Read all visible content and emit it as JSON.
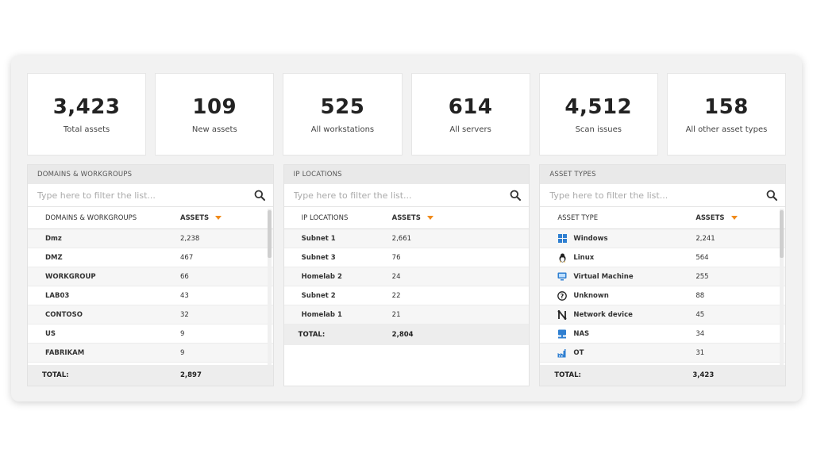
{
  "stats": [
    {
      "value": "3,423",
      "label": "Total assets"
    },
    {
      "value": "109",
      "label": "New assets"
    },
    {
      "value": "525",
      "label": "All workstations"
    },
    {
      "value": "614",
      "label": "All servers"
    },
    {
      "value": "4,512",
      "label": "Scan issues"
    },
    {
      "value": "158",
      "label": "All other asset types"
    }
  ],
  "domains": {
    "title": "DOMAINS & WORKGROUPS",
    "placeholder": "Type here to filter the list...",
    "col1": "DOMAINS & WORKGROUPS",
    "col2": "ASSETS",
    "rows": [
      {
        "name": "Dmz",
        "count": "2,238"
      },
      {
        "name": "DMZ",
        "count": "467"
      },
      {
        "name": "WORKGROUP",
        "count": "66"
      },
      {
        "name": "LAB03",
        "count": "43"
      },
      {
        "name": "CONTOSO",
        "count": "32"
      },
      {
        "name": "US",
        "count": "9"
      },
      {
        "name": "FABRIKAM",
        "count": "9"
      }
    ],
    "total_label": "TOTAL:",
    "total": "2,897"
  },
  "ip": {
    "title": "IP LOCATIONS",
    "placeholder": "Type here to filter the list...",
    "col1": "IP LOCATIONS",
    "col2": "ASSETS",
    "rows": [
      {
        "name": "Subnet 1",
        "count": "2,661"
      },
      {
        "name": "Subnet 3",
        "count": "76"
      },
      {
        "name": "Homelab 2",
        "count": "24"
      },
      {
        "name": "Subnet 2",
        "count": "22"
      },
      {
        "name": "Homelab 1",
        "count": "21"
      }
    ],
    "total_label": "TOTAL:",
    "total": "2,804"
  },
  "types": {
    "title": "ASSET TYPES",
    "placeholder": "Type here to filter the list...",
    "col1": "ASSET TYPE",
    "col2": "ASSETS",
    "rows": [
      {
        "name": "Windows",
        "count": "2,241",
        "icon": "windows-icon"
      },
      {
        "name": "Linux",
        "count": "564",
        "icon": "linux-icon"
      },
      {
        "name": "Virtual Machine",
        "count": "255",
        "icon": "virtual-machine-icon"
      },
      {
        "name": "Unknown",
        "count": "88",
        "icon": "unknown-icon"
      },
      {
        "name": "Network device",
        "count": "45",
        "icon": "network-device-icon"
      },
      {
        "name": "NAS",
        "count": "34",
        "icon": "nas-icon"
      },
      {
        "name": "OT",
        "count": "31",
        "icon": "ot-icon"
      }
    ],
    "total_label": "TOTAL:",
    "total": "3,423"
  },
  "colors": {
    "accent": "#f08a1a",
    "icon_blue": "#2f7fd1"
  }
}
